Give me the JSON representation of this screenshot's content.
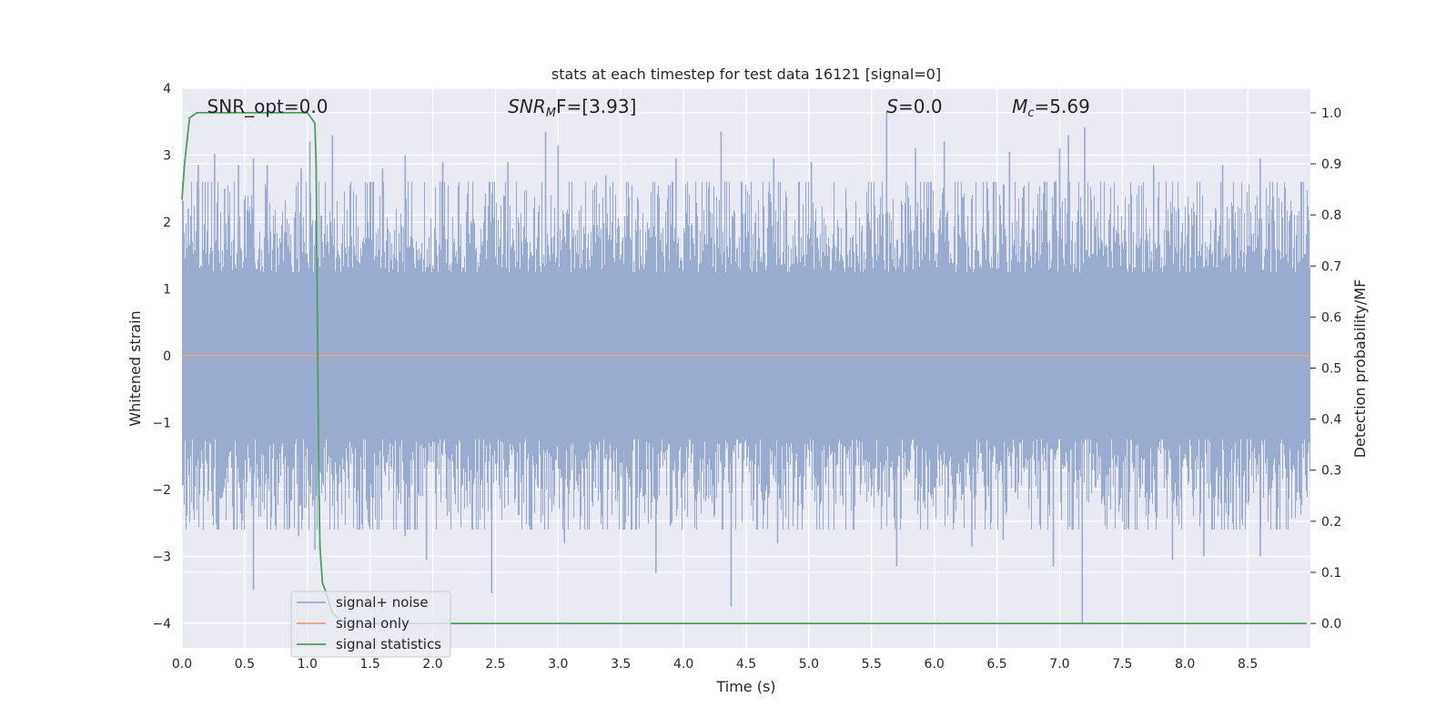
{
  "chart_data": {
    "type": "line",
    "title": "stats at each timestep for test data 16121 [signal=0]",
    "xlabel": "Time (s)",
    "ylabel": "Whitened strain",
    "y2label": "Detection probability/MF",
    "xlim": [
      0,
      9.0
    ],
    "ylim": [
      -4.37,
      4.0
    ],
    "y2lim": [
      -0.048,
      1.048
    ],
    "x_ticks": [
      "0.0",
      "0.5",
      "1.0",
      "1.5",
      "2.0",
      "2.5",
      "3.0",
      "3.5",
      "4.0",
      "4.5",
      "5.0",
      "5.5",
      "6.0",
      "6.5",
      "7.0",
      "7.5",
      "8.0",
      "8.5"
    ],
    "x_tick_values": [
      0,
      0.5,
      1,
      1.5,
      2,
      2.5,
      3,
      3.5,
      4,
      4.5,
      5,
      5.5,
      6,
      6.5,
      7,
      7.5,
      8,
      8.5
    ],
    "y_ticks": [
      "4",
      "3",
      "2",
      "1",
      "0",
      "−1",
      "−2",
      "−3",
      "−4"
    ],
    "y_tick_values": [
      4,
      3,
      2,
      1,
      0,
      -1,
      -2,
      -3,
      -4
    ],
    "y2_ticks": [
      "1.0",
      "0.9",
      "0.8",
      "0.7",
      "0.6",
      "0.5",
      "0.4",
      "0.3",
      "0.2",
      "0.1",
      "0.0"
    ],
    "y2_tick_values": [
      1.0,
      0.9,
      0.8,
      0.7,
      0.6,
      0.5,
      0.4,
      0.3,
      0.2,
      0.1,
      0.0
    ],
    "grid": true,
    "legend_position": "lower-left",
    "annotations": [
      {
        "base": "SNR_opt=0.0",
        "sub": "",
        "rest": "",
        "italic": false,
        "x": 0.2
      },
      {
        "base": "SNR",
        "sub": "M",
        "rest": "F=[3.93]",
        "italic": true,
        "x": 2.6
      },
      {
        "base": "S",
        "sub": "",
        "rest": "=0.0",
        "italic": true,
        "x": 5.62
      },
      {
        "base": "M",
        "sub": "c",
        "rest": "=5.69",
        "italic": true,
        "x": 6.62
      }
    ],
    "series": [
      {
        "name": "signal+ noise",
        "axis": "left",
        "color": "#9aabd0",
        "noise_std": 0.85,
        "peaks": [
          {
            "x": 0.05,
            "y": 2.2
          },
          {
            "x": 0.13,
            "y": 2.85
          },
          {
            "x": 0.26,
            "y": 3.02
          },
          {
            "x": 0.34,
            "y": 2.5
          },
          {
            "x": 0.45,
            "y": 2.85
          },
          {
            "x": 0.57,
            "y": 2.95
          },
          {
            "x": 0.68,
            "y": 2.85
          },
          {
            "x": 0.95,
            "y": 2.8
          },
          {
            "x": 1.02,
            "y": 3.2
          },
          {
            "x": 1.2,
            "y": 3.3
          },
          {
            "x": 1.6,
            "y": 2.8
          },
          {
            "x": 1.78,
            "y": 3.0
          },
          {
            "x": 2.08,
            "y": 2.9
          },
          {
            "x": 2.6,
            "y": 2.9
          },
          {
            "x": 2.9,
            "y": 3.35
          },
          {
            "x": 3.0,
            "y": 3.15
          },
          {
            "x": 3.38,
            "y": 2.7
          },
          {
            "x": 3.94,
            "y": 2.95
          },
          {
            "x": 4.3,
            "y": 3.35
          },
          {
            "x": 4.72,
            "y": 2.95
          },
          {
            "x": 5.02,
            "y": 2.9
          },
          {
            "x": 5.62,
            "y": 3.65
          },
          {
            "x": 5.85,
            "y": 3.1
          },
          {
            "x": 6.08,
            "y": 3.2
          },
          {
            "x": 6.6,
            "y": 3.05
          },
          {
            "x": 7.0,
            "y": 3.1
          },
          {
            "x": 7.07,
            "y": 3.3
          },
          {
            "x": 7.2,
            "y": 3.42
          },
          {
            "x": 7.75,
            "y": 2.85
          },
          {
            "x": 8.3,
            "y": 2.85
          },
          {
            "x": 8.6,
            "y": 2.95
          },
          {
            "x": 0.57,
            "y": -3.5
          },
          {
            "x": 0.93,
            "y": -2.7
          },
          {
            "x": 1.06,
            "y": -2.9
          },
          {
            "x": 1.78,
            "y": -2.7
          },
          {
            "x": 1.95,
            "y": -3.05
          },
          {
            "x": 2.47,
            "y": -3.55
          },
          {
            "x": 3.05,
            "y": -2.8
          },
          {
            "x": 3.52,
            "y": -2.6
          },
          {
            "x": 3.78,
            "y": -3.25
          },
          {
            "x": 4.38,
            "y": -3.75
          },
          {
            "x": 4.75,
            "y": -2.8
          },
          {
            "x": 5.7,
            "y": -3.15
          },
          {
            "x": 6.3,
            "y": -2.85
          },
          {
            "x": 6.55,
            "y": -2.75
          },
          {
            "x": 6.95,
            "y": -3.15
          },
          {
            "x": 7.1,
            "y": -2.6
          },
          {
            "x": 7.18,
            "y": -4.0
          },
          {
            "x": 7.9,
            "y": -3.05
          },
          {
            "x": 8.15,
            "y": -3.0
          },
          {
            "x": 8.6,
            "y": -3.0
          }
        ]
      },
      {
        "name": "signal only",
        "axis": "left",
        "color": "#e8a384",
        "x": [
          0,
          9.0
        ],
        "y": [
          0,
          0
        ]
      },
      {
        "name": "signal statistics",
        "axis": "right",
        "color": "#4c9f5f",
        "x": [
          0.0,
          0.02,
          0.06,
          0.12,
          0.3,
          0.6,
          0.9,
          1.0,
          1.06,
          1.07,
          1.08,
          1.09,
          1.1,
          1.12,
          1.15,
          1.2,
          1.3,
          2.0,
          4.0,
          7.0,
          7.7,
          8.0,
          8.97
        ],
        "y": [
          0.83,
          0.9,
          0.99,
          1.0,
          1.0,
          1.0,
          1.0,
          1.0,
          0.98,
          0.9,
          0.6,
          0.3,
          0.15,
          0.08,
          0.06,
          0.02,
          0.0,
          0.0,
          0.0,
          0.0,
          0.0,
          0.0,
          0.0
        ]
      }
    ]
  }
}
